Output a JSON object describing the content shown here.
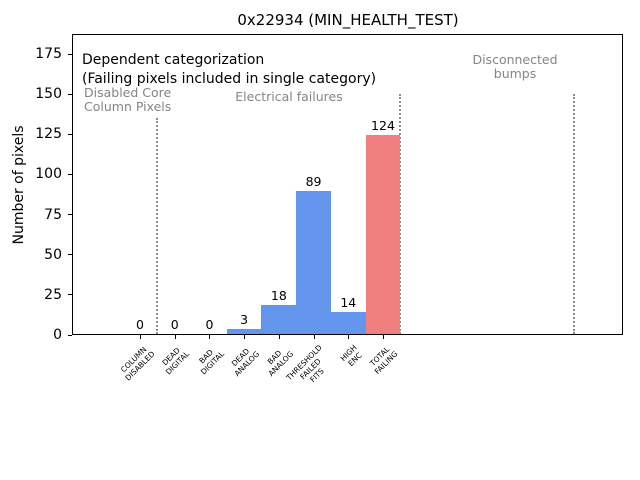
{
  "chart_data": {
    "type": "bar",
    "title": "0x22934 (MIN_HEALTH_TEST)",
    "ylabel": "Number of pixels",
    "xlabel": "",
    "grid": false,
    "legend": null,
    "ylim": [
      0,
      187
    ],
    "xlim": [
      -1.96,
      13.94
    ],
    "yticks": [
      0,
      25,
      50,
      75,
      100,
      125,
      150,
      175
    ],
    "xtick_rotation": 45,
    "categories": [
      "COLUMN\nDISABLED",
      "DEAD\nDIGITAL",
      "BAD\nDIGITAL",
      "DEAD\nANALOG",
      "BAD\nANALOG",
      "THRESHOLD\nFAILED\nFITS",
      "HIGH\nENC",
      "TOTAL\nFAILING"
    ],
    "values": [
      0,
      0,
      0,
      3,
      18,
      89,
      14,
      124
    ],
    "bar_value_labels": [
      "0",
      "0",
      "0",
      "3",
      "18",
      "89",
      "14",
      "124"
    ],
    "bar_colors": [
      "#6495ed",
      "#6495ed",
      "#6495ed",
      "#6495ed",
      "#6495ed",
      "#6495ed",
      "#6495ed",
      "#f08080"
    ],
    "vlines": [
      {
        "x": 0.5,
        "y_max": 135
      },
      {
        "x": 7.5,
        "y_max": 150
      },
      {
        "x": 12.5,
        "y_max": 150
      }
    ],
    "annotations": [
      {
        "id": "dependent-categorization",
        "text": "Dependent categorization",
        "color": "black"
      },
      {
        "id": "failing-note",
        "text": "(Failing pixels included in single category)",
        "color": "black"
      },
      {
        "id": "disabled-core-column-pixels",
        "text": "Disabled Core\nColumn Pixels",
        "color": "gray"
      },
      {
        "id": "electrical-failures",
        "text": "Electrical failures",
        "color": "gray"
      },
      {
        "id": "disconnected-bumps",
        "text": "Disconnected\nbumps",
        "color": "gray"
      }
    ],
    "colors": {
      "bar_blue": "#6495ed",
      "bar_highlight_red": "#f08080",
      "gray_annotation_text": "#858585",
      "dotted_line": "#8c8c8c",
      "spine": "#000000"
    }
  }
}
